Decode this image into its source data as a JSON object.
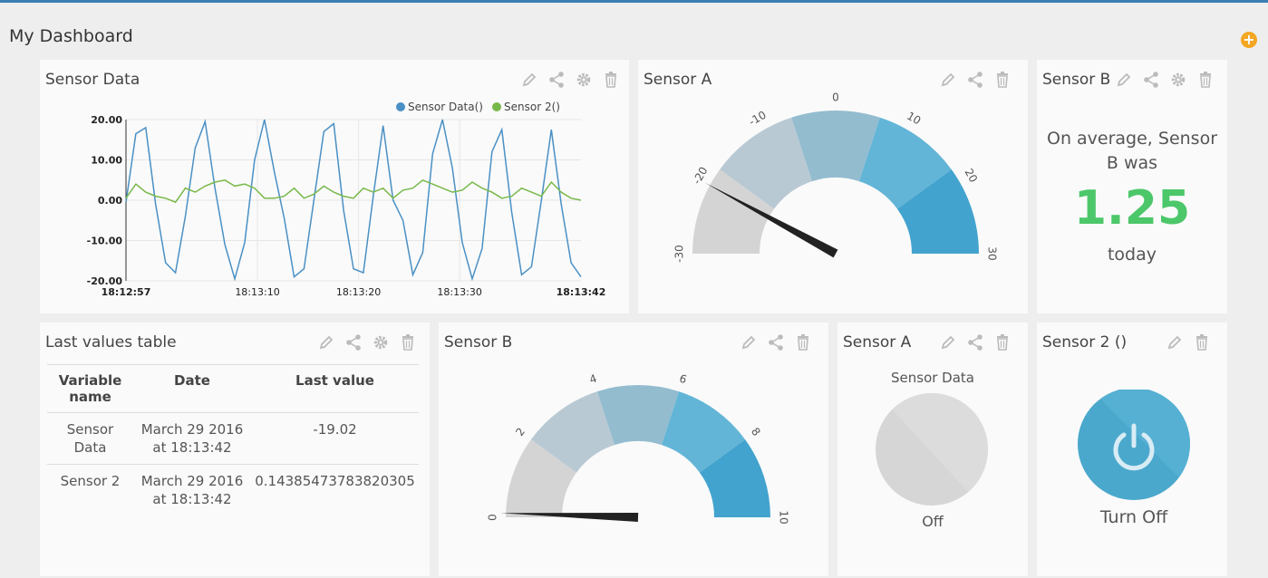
{
  "dashboard": {
    "title": "My Dashboard",
    "add_icon": "plus-circle-icon",
    "accent": "#f5a623"
  },
  "widgets": {
    "sensor_data_chart": {
      "title": "Sensor Data",
      "legend": [
        "Sensor Data()",
        "Sensor 2()"
      ]
    },
    "sensor_a_gauge": {
      "title": "Sensor A",
      "ticks": [
        "-30",
        "-20",
        "-10",
        "0",
        "10",
        "20",
        "30"
      ],
      "value": -20.5
    },
    "sensor_b_average": {
      "title": "Sensor B",
      "line1": "On average, Sensor",
      "line2": "B was",
      "value": "1.25",
      "suffix": "today",
      "value_color": "#4cc76a"
    },
    "last_values_table": {
      "title": "Last values table",
      "headers": [
        "Variable name",
        "Date",
        "Last value"
      ],
      "rows": [
        {
          "name": "Sensor Data",
          "date": "March 29 2016 at 18:13:42",
          "value": "-19.02"
        },
        {
          "name": "Sensor 2",
          "date": "March 29 2016 at 18:13:42",
          "value": "0.14385473783820305"
        }
      ]
    },
    "sensor_b_gauge": {
      "title": "Sensor B",
      "ticks": [
        "0",
        "2",
        "4",
        "6",
        "8",
        "10"
      ],
      "value": 0.1
    },
    "sensor_a_indicator": {
      "title": "Sensor A",
      "label": "Sensor Data",
      "state": "Off"
    },
    "sensor_2_switch": {
      "title": "Sensor 2 ()",
      "icon": "power-icon",
      "label": "Turn Off",
      "color": "#4aa8cc"
    }
  },
  "chart_data": {
    "type": "line",
    "title": "",
    "xlabel": "",
    "ylabel": "",
    "ylim": [
      -20,
      20
    ],
    "y_ticks": [
      "20.00",
      "10.00",
      "0.00",
      "-10.00",
      "-20.00"
    ],
    "x_ticks": [
      "18:12:57",
      "18:13:10",
      "18:13:20",
      "18:13:30",
      "18:13:42"
    ],
    "x_tick_seconds": [
      0,
      13,
      23,
      33,
      45
    ],
    "legend_position": "top-right",
    "series": [
      {
        "name": "Sensor Data()",
        "color": "#4a90c4",
        "values": [
          -0.5,
          16.5,
          18.0,
          -1.0,
          -15.5,
          -18.0,
          -4.0,
          13.0,
          19.5,
          3.0,
          -11.0,
          -19.5,
          -10.5,
          10.0,
          20.0,
          7.0,
          -4.5,
          -19.0,
          -17.0,
          0.0,
          17.0,
          19.0,
          -2.5,
          -17.0,
          -18.0,
          1.0,
          18.5,
          0.0,
          -5.0,
          -18.5,
          -13.0,
          11.5,
          20.0,
          8.0,
          -10.5,
          -19.5,
          -12.0,
          12.0,
          17.5,
          -3.0,
          -18.5,
          -16.5,
          0.0,
          17.5,
          -1.0,
          -15.5,
          -19.0
        ]
      },
      {
        "name": "Sensor 2()",
        "color": "#78b84a",
        "values": [
          0.5,
          4.0,
          2.0,
          1.0,
          0.5,
          -0.5,
          3.0,
          2.0,
          3.5,
          4.5,
          5.0,
          3.5,
          4.0,
          3.0,
          0.5,
          0.5,
          1.0,
          3.0,
          0.5,
          1.5,
          3.5,
          2.0,
          1.0,
          0.5,
          3.0,
          2.0,
          3.0,
          0.5,
          2.5,
          3.0,
          5.0,
          4.0,
          3.0,
          2.0,
          2.5,
          4.5,
          3.0,
          2.0,
          0.5,
          1.0,
          3.0,
          2.0,
          1.0,
          4.5,
          2.0,
          0.5,
          0.0
        ]
      }
    ]
  }
}
